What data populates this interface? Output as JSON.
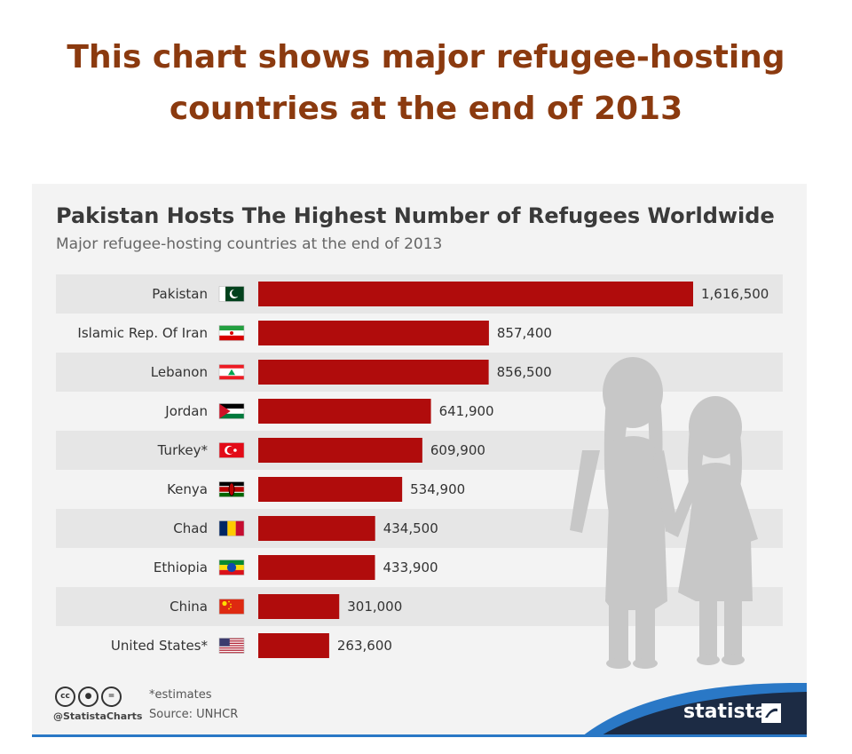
{
  "page": {
    "headline_line1": "This chart shows major refugee-hosting",
    "headline_line2": "countries at the end of 2013"
  },
  "chart_data": {
    "type": "bar",
    "orientation": "horizontal",
    "title": "Pakistan Hosts The Highest Number of Refugees Worldwide",
    "subtitle": "Major refugee-hosting countries at the end of 2013",
    "categories": [
      "Pakistan",
      "Islamic Rep. Of Iran",
      "Lebanon",
      "Jordan",
      "Turkey*",
      "Kenya",
      "Chad",
      "Ethiopia",
      "China",
      "United States*"
    ],
    "values": [
      1616500,
      857400,
      856500,
      641900,
      609900,
      534900,
      434500,
      433900,
      301000,
      263600
    ],
    "value_labels": [
      "1,616,500",
      "857,400",
      "856,500",
      "641,900",
      "609,900",
      "534,900",
      "434,500",
      "433,900",
      "301,000",
      "263,600"
    ],
    "flags": [
      "pakistan-flag-icon",
      "iran-flag-icon",
      "lebanon-flag-icon",
      "jordan-flag-icon",
      "turkey-flag-icon",
      "kenya-flag-icon",
      "chad-flag-icon",
      "ethiopia-flag-icon",
      "china-flag-icon",
      "united-states-flag-icon"
    ],
    "xlim": [
      0,
      1616500
    ],
    "bar_color": "#b00c0c",
    "row_alt_color": "#e6e6e6",
    "grid": false,
    "legend": "none"
  },
  "footer": {
    "footnote": "*estimates",
    "source": "Source: UNHCR",
    "handle": "@StatistaCharts",
    "brand": "statista",
    "license_icons": [
      "cc-icon",
      "by-icon",
      "nd-icon"
    ]
  },
  "colors": {
    "headline": "#8b3a0f",
    "brand_navy": "#1c2b44",
    "brand_blue": "#2a78c6",
    "silhouette": "#c7c7c7"
  }
}
